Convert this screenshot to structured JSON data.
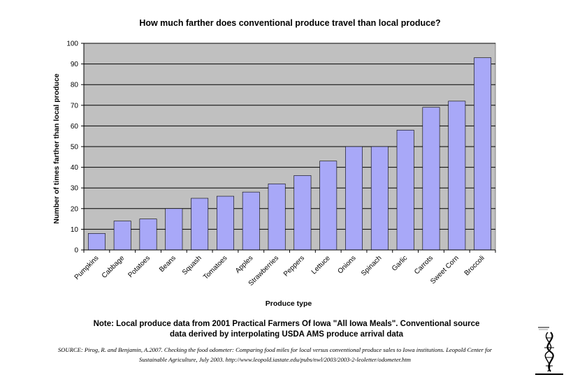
{
  "chart_data": {
    "type": "bar",
    "title": "How much farther does conventional produce travel than local produce?",
    "xlabel": "Produce type",
    "ylabel": "Number of times farther than local produce",
    "ylim": [
      0,
      100
    ],
    "yticks": [
      0,
      10,
      20,
      30,
      40,
      50,
      60,
      70,
      80,
      90,
      100
    ],
    "grid": true,
    "legend": "none",
    "bar_color": "#a8a8f8",
    "plot_background": "#c0c0c0",
    "categories": [
      "Pumpkins",
      "Cabbage",
      "Potatoes",
      "Beans",
      "Squash",
      "Tomatoes",
      "Apples",
      "Strawberries",
      "Peppers",
      "Lettuce",
      "Onions",
      "Spinach",
      "Garlic",
      "Carrots",
      "Sweet Corn",
      "Broccoli"
    ],
    "values": [
      8,
      14,
      15,
      20,
      25,
      26,
      28,
      32,
      36,
      43,
      50,
      50,
      58,
      69,
      72,
      93
    ]
  },
  "note": {
    "line1": "Note: Local produce data from 2001 Practical Farmers Of Iowa \"All Iowa Meals\". Conventional source",
    "line2": "data derived by interpolating  USDA AMS produce arrival data"
  },
  "source": {
    "line1": "SOURCE: Pirog, R. and Benjamin, A.2007. Checking the food odometer: Comparing food miles for local versus conventional produce sales to Iowa institutions. Leopold Center for",
    "line2": "Sustainable Agriculture, July 2003. http://www.leopold.iastate.edu/pubs/nwl/2003/2003-2-leoletter/odometer.htm"
  }
}
